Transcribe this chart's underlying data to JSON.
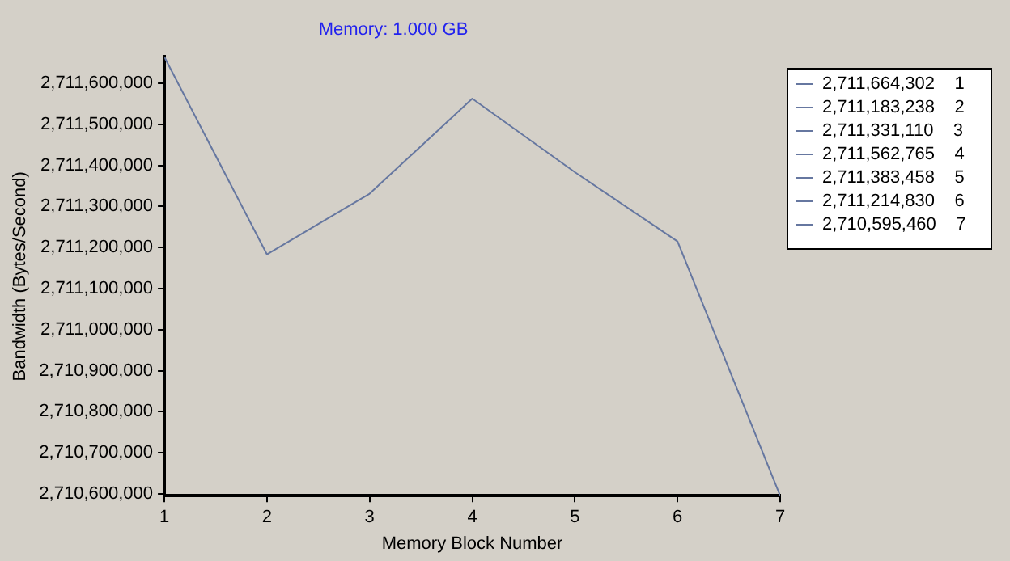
{
  "chart_data": {
    "type": "line",
    "title": "Memory: 1.000 GB",
    "xlabel": "Memory Block Number",
    "ylabel": "Bandwidth (Bytes/Second)",
    "x": [
      1,
      2,
      3,
      4,
      5,
      6,
      7
    ],
    "series": [
      {
        "color": "#6677a0",
        "values": [
          2711664302,
          2711183238,
          2711331110,
          2711562765,
          2711383458,
          2711214830,
          2710595460
        ]
      }
    ],
    "xlim": [
      1,
      7
    ],
    "xticks": [
      1,
      2,
      3,
      4,
      5,
      6,
      7
    ],
    "ylim": [
      2710595460,
      2711664302
    ],
    "yticks": [
      {
        "value": 2710600000,
        "label": "2,710,600,000"
      },
      {
        "value": 2710700000,
        "label": "2,710,700,000"
      },
      {
        "value": 2710800000,
        "label": "2,710,800,000"
      },
      {
        "value": 2710900000,
        "label": "2,710,900,000"
      },
      {
        "value": 2711000000,
        "label": "2,711,000,000"
      },
      {
        "value": 2711100000,
        "label": "2,711,100,000"
      },
      {
        "value": 2711200000,
        "label": "2,711,200,000"
      },
      {
        "value": 2711300000,
        "label": "2,711,300,000"
      },
      {
        "value": 2711400000,
        "label": "2,711,400,000"
      },
      {
        "value": 2711500000,
        "label": "2,711,500,000"
      },
      {
        "value": 2711600000,
        "label": "2,711,600,000"
      }
    ],
    "annotations": [
      "2,711,664,302    1",
      "2,711,183,238    2",
      "2,711,331,110    3",
      "2,711,562,765    4",
      "2,711,383,458    5",
      "2,711,214,830    6",
      "2,710,595,460    7"
    ],
    "grid": false,
    "marker": "none"
  }
}
